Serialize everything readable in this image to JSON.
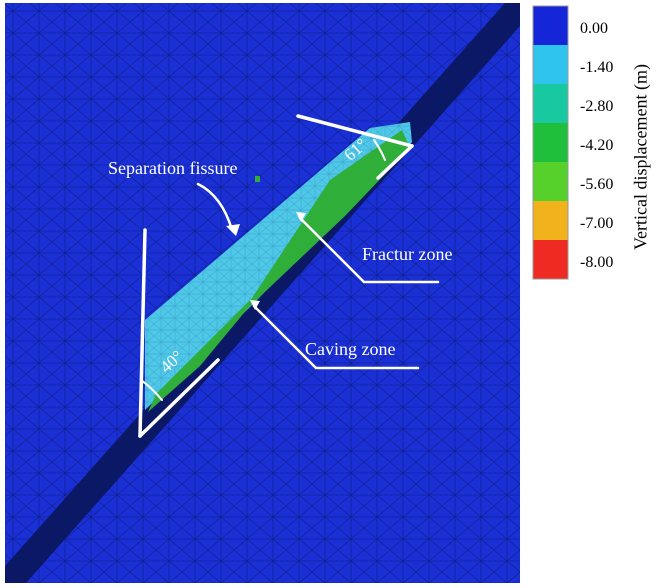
{
  "model": {
    "background_color": "#1a2fd4",
    "mesh_color": "#0c1c7e",
    "seam_color": "#0a1866"
  },
  "zones": {
    "fracture": {
      "color": "#4fc8e8"
    },
    "caving": {
      "color": "#2fae3a"
    }
  },
  "colorbar": {
    "title": "Vertical displacement (m)",
    "ticks": [
      "0.00",
      "-1.40",
      "-2.80",
      "-4.20",
      "-5.60",
      "-7.00",
      "-8.00"
    ],
    "colors": [
      "#1525d8",
      "#2ec4ee",
      "#18c8a0",
      "#1fbf3c",
      "#56d02a",
      "#f2b21c",
      "#ee2a22"
    ]
  },
  "annotations": {
    "separation_fissure": "Separation fissure",
    "fracture_zone": "Fractur zone",
    "caving_zone": "Caving zone",
    "angle_left": "40°",
    "angle_right": "61°"
  }
}
